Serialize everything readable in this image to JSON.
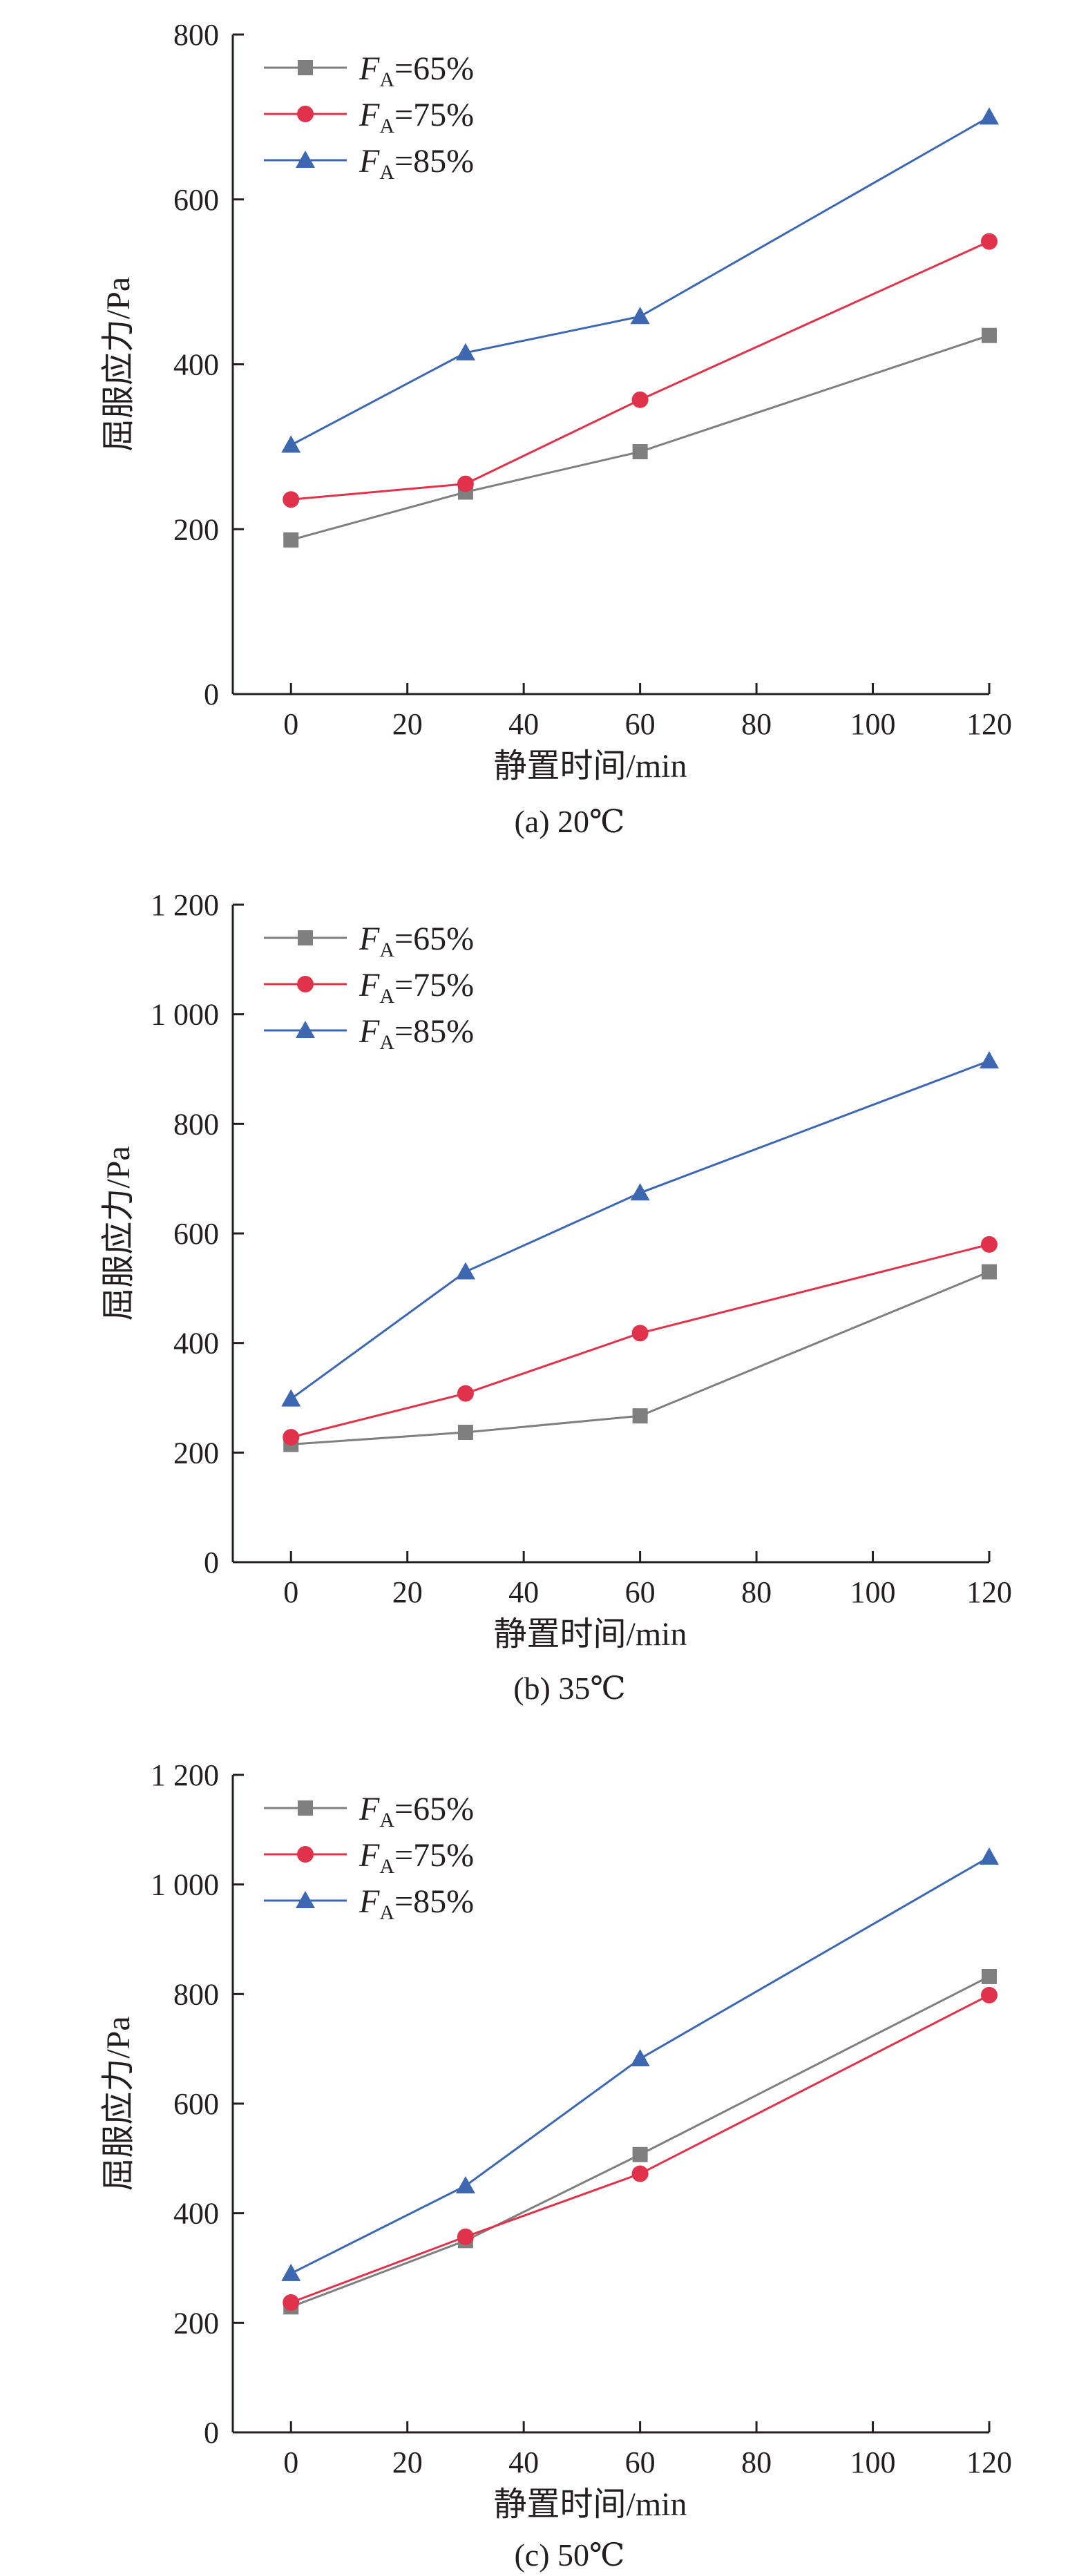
{
  "chart_data": [
    {
      "type": "line",
      "caption": "(a) 20℃",
      "xlabel": "静置时间/min",
      "ylabel": "屈服应力/Pa",
      "xlim": [
        -10,
        120
      ],
      "ylim": [
        0,
        800
      ],
      "xticks": [
        0,
        20,
        40,
        60,
        80,
        100,
        120
      ],
      "xtick_labels": [
        "0",
        "20",
        "40",
        "60",
        "80",
        "100",
        "120"
      ],
      "yticks": [
        0,
        200,
        400,
        600,
        800
      ],
      "ytick_labels": [
        "0",
        "200",
        "400",
        "600",
        "800"
      ],
      "legend_position": "top-left",
      "grid": false,
      "x": [
        0,
        30,
        60,
        120
      ],
      "series": [
        {
          "name": "FA=65%",
          "name_main": "F",
          "name_sub": "A",
          "name_rest": "=65%",
          "values": [
            187,
            245,
            294,
            435
          ],
          "color": "#7f7f7f",
          "marker": "square"
        },
        {
          "name": "FA=75%",
          "name_main": "F",
          "name_sub": "A",
          "name_rest": "=75%",
          "values": [
            236,
            255,
            357,
            549
          ],
          "color": "#e0324a",
          "marker": "circle"
        },
        {
          "name": "FA=85%",
          "name_main": "F",
          "name_sub": "A",
          "name_rest": "=85%",
          "values": [
            302,
            414,
            458,
            700
          ],
          "color": "#3d67b1",
          "marker": "triangle"
        }
      ]
    },
    {
      "type": "line",
      "caption": "(b) 35℃",
      "xlabel": "静置时间/min",
      "ylabel": "屈服应力/Pa",
      "xlim": [
        -10,
        120
      ],
      "ylim": [
        0,
        1200
      ],
      "xticks": [
        0,
        20,
        40,
        60,
        80,
        100,
        120
      ],
      "xtick_labels": [
        "0",
        "20",
        "40",
        "60",
        "80",
        "100",
        "120"
      ],
      "yticks": [
        0,
        200,
        400,
        600,
        800,
        1000,
        1200
      ],
      "ytick_labels": [
        "0",
        "200",
        "400",
        "600",
        "800",
        "1 000",
        "1 200"
      ],
      "legend_position": "top-left",
      "grid": false,
      "x": [
        0,
        30,
        60,
        120
      ],
      "series": [
        {
          "name": "FA=65%",
          "name_main": "F",
          "name_sub": "A",
          "name_rest": "=65%",
          "values": [
            215,
            237,
            267,
            530
          ],
          "color": "#7f7f7f",
          "marker": "square"
        },
        {
          "name": "FA=75%",
          "name_main": "F",
          "name_sub": "A",
          "name_rest": "=75%",
          "values": [
            228,
            308,
            418,
            580
          ],
          "color": "#e0324a",
          "marker": "circle"
        },
        {
          "name": "FA=85%",
          "name_main": "F",
          "name_sub": "A",
          "name_rest": "=85%",
          "values": [
            298,
            530,
            674,
            915
          ],
          "color": "#3d67b1",
          "marker": "triangle"
        }
      ]
    },
    {
      "type": "line",
      "caption": "(c) 50℃",
      "xlabel": "静置时间/min",
      "ylabel": "屈服应力/Pa",
      "xlim": [
        -10,
        120
      ],
      "ylim": [
        0,
        1200
      ],
      "xticks": [
        0,
        20,
        40,
        60,
        80,
        100,
        120
      ],
      "xtick_labels": [
        "0",
        "20",
        "40",
        "60",
        "80",
        "100",
        "120"
      ],
      "yticks": [
        0,
        200,
        400,
        600,
        800,
        1000,
        1200
      ],
      "ytick_labels": [
        "0",
        "200",
        "400",
        "600",
        "800",
        "1 000",
        "1 200"
      ],
      "legend_position": "top-left",
      "grid": false,
      "x": [
        0,
        30,
        60,
        120
      ],
      "series": [
        {
          "name": "FA=65%",
          "name_main": "F",
          "name_sub": "A",
          "name_rest": "=65%",
          "values": [
            229,
            350,
            507,
            832
          ],
          "color": "#7f7f7f",
          "marker": "square"
        },
        {
          "name": "FA=75%",
          "name_main": "F",
          "name_sub": "A",
          "name_rest": "=75%",
          "values": [
            237,
            357,
            472,
            798
          ],
          "color": "#e0324a",
          "marker": "circle"
        },
        {
          "name": "FA=85%",
          "name_main": "F",
          "name_sub": "A",
          "name_rest": "=85%",
          "values": [
            290,
            450,
            682,
            1050
          ],
          "color": "#3d67b1",
          "marker": "triangle"
        }
      ]
    }
  ]
}
